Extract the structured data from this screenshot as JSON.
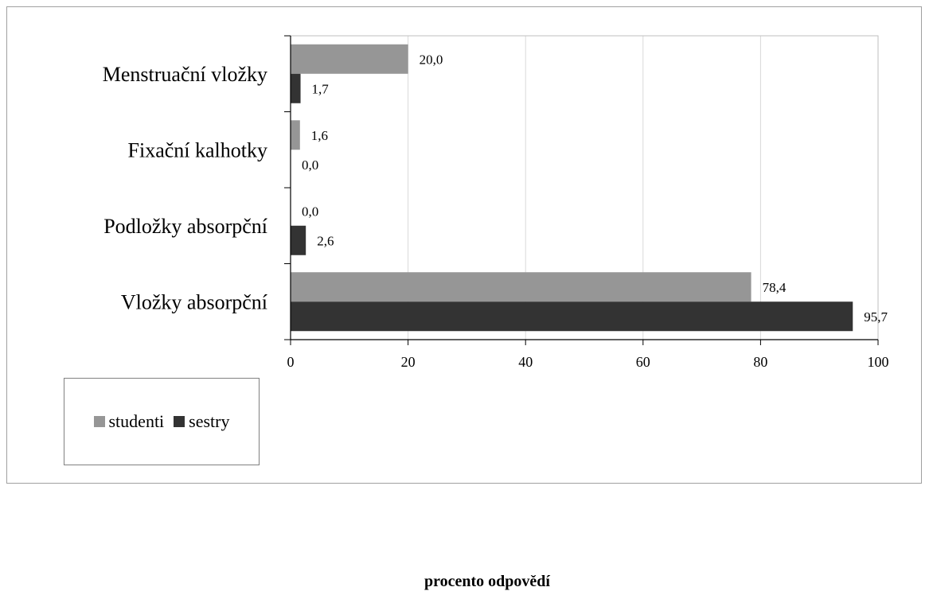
{
  "chart_data": {
    "type": "bar",
    "orientation": "horizontal",
    "categories": [
      "Menstruační vložky",
      "Fixační kalhotky",
      "Podložky absorpční",
      "Vložky absorpční"
    ],
    "series": [
      {
        "name": "studenti",
        "values": [
          20.0,
          1.6,
          0.0,
          78.4
        ],
        "labels": [
          "20,0",
          "1,6",
          "0,0",
          "78,4"
        ],
        "color": "#969696"
      },
      {
        "name": "sestry",
        "values": [
          1.7,
          0.0,
          2.6,
          95.7
        ],
        "labels": [
          "1,7",
          "0,0",
          "2,6",
          "95,7"
        ],
        "color": "#333333"
      }
    ],
    "xlim": [
      0,
      100
    ],
    "xticks": [
      0,
      20,
      40,
      60,
      80,
      100
    ],
    "xlabel": "procento odpovědí",
    "ylabel": "",
    "title": "",
    "grid": "vertical",
    "legend": "bottom-left"
  }
}
